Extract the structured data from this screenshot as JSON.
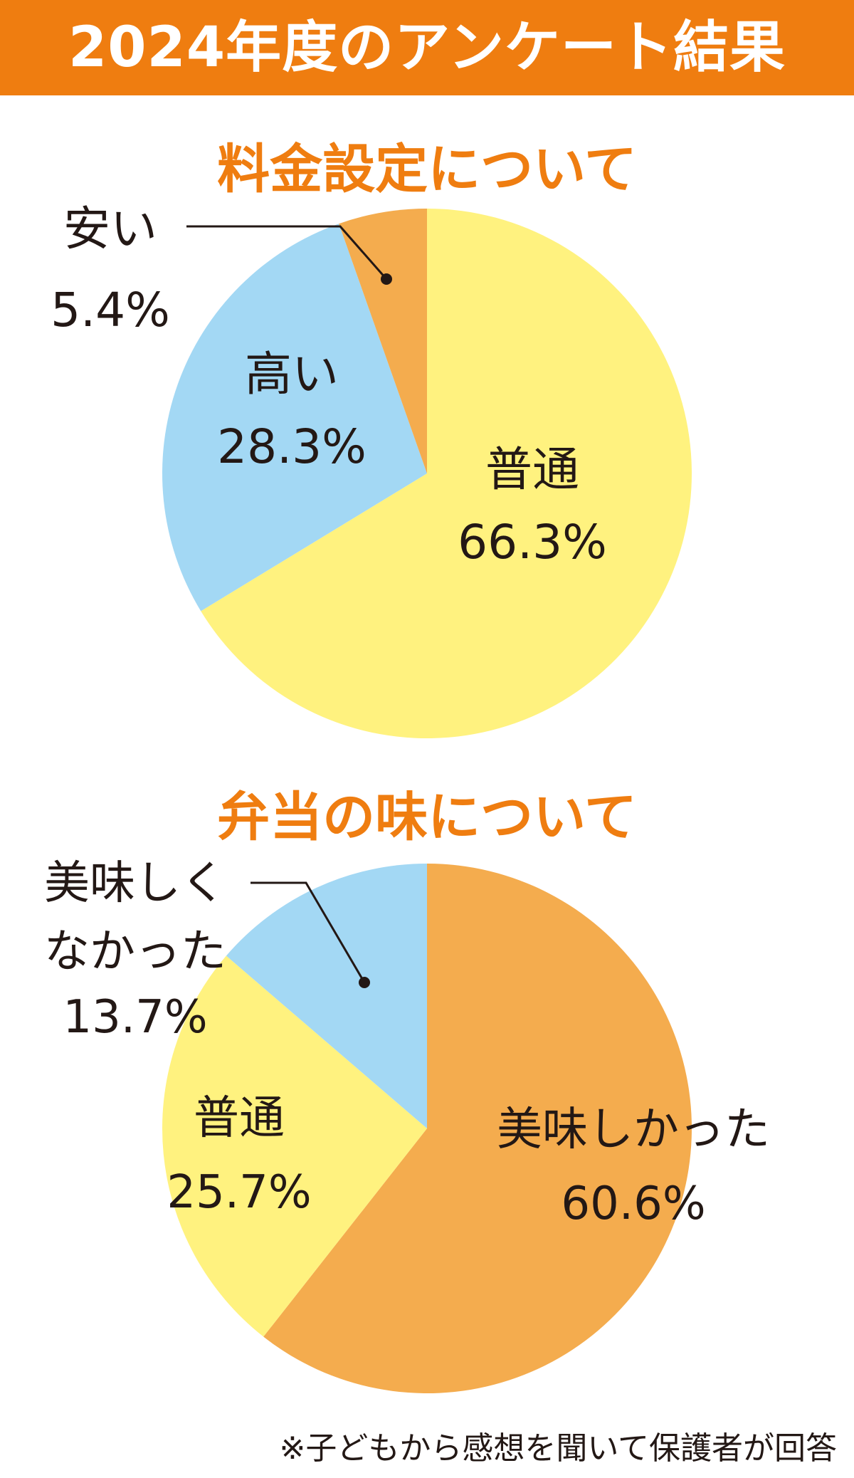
{
  "header": {
    "title": "2024年度のアンケート結果"
  },
  "colors": {
    "accent": "#ef7d10",
    "yellow": "#fff27f",
    "blue": "#a3d8f4",
    "orange": "#f4ac4e",
    "text": "#231815"
  },
  "footnote": "※子どもから感想を聞いて保護者が回答",
  "chart_data": [
    {
      "type": "pie",
      "title": "料金設定について",
      "slices": [
        {
          "label": "普通",
          "value": 66.3,
          "value_label": "66.3%",
          "color": "#fff27f"
        },
        {
          "label": "高い",
          "value": 28.3,
          "value_label": "28.3%",
          "color": "#a3d8f4"
        },
        {
          "label": "安い",
          "value": 5.4,
          "value_label": "5.4%",
          "color": "#f4ac4e"
        }
      ]
    },
    {
      "type": "pie",
      "title": "弁当の味について",
      "slices": [
        {
          "label": "美味しかった",
          "value": 60.6,
          "value_label": "60.6%",
          "color": "#f4ac4e"
        },
        {
          "label": "普通",
          "value": 25.7,
          "value_label": "25.7%",
          "color": "#fff27f"
        },
        {
          "label": "美味しく\nなかった",
          "value": 13.7,
          "value_label": "13.7%",
          "color": "#a3d8f4"
        }
      ]
    }
  ]
}
